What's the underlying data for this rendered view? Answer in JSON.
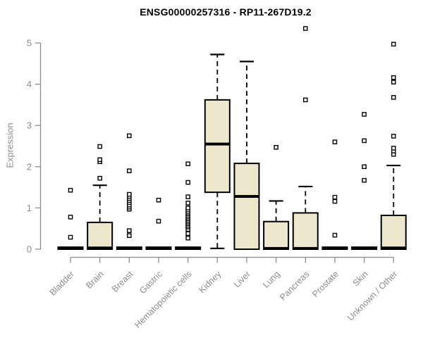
{
  "chart_data": {
    "type": "boxplot",
    "title": "ENSG00000257316 - RP11-267D19.2",
    "ylabel": "Expression",
    "xlabel": "",
    "ylim": [
      0,
      5.45
    ],
    "yticks": [
      0,
      1,
      2,
      3,
      4,
      5
    ],
    "grid": false,
    "legend": null,
    "colors": {
      "box_fill": "#EDE7CE",
      "box_stroke": "#000000",
      "median": "#000000",
      "axis": "#8C8C8C",
      "outlier_fill": "#FFFFFF",
      "title": "#000000"
    },
    "categories": [
      "Bladder",
      "Brain",
      "Breast",
      "Gastric",
      "Hematopoietic cells",
      "Kidney",
      "Liver",
      "Lung",
      "Pancreas",
      "Prostate",
      "Skin",
      "Unknown / Other"
    ],
    "boxes": [
      {
        "category": "Bladder",
        "whisker_low": 0,
        "q1": 0,
        "median": 0.02,
        "q3": 0.05,
        "whisker_high": 0.05,
        "outliers": [
          0.29,
          0.78,
          1.43
        ]
      },
      {
        "category": "Brain",
        "whisker_low": 0,
        "q1": 0,
        "median": 0.03,
        "q3": 0.65,
        "whisker_high": 1.55,
        "outliers": [
          1.72,
          2.12,
          2.17,
          2.49
        ]
      },
      {
        "category": "Breast",
        "whisker_low": 0,
        "q1": 0,
        "median": 0.02,
        "q3": 0.05,
        "whisker_high": 0.05,
        "outliers": [
          0.33,
          0.45,
          0.97,
          1.02,
          1.07,
          1.13,
          1.18,
          1.23,
          1.28,
          1.33,
          1.9,
          2.75
        ]
      },
      {
        "category": "Gastric",
        "whisker_low": 0,
        "q1": 0,
        "median": 0.02,
        "q3": 0.05,
        "whisker_high": 0.05,
        "outliers": [
          0.68,
          1.19
        ]
      },
      {
        "category": "Hematopoietic cells",
        "whisker_low": 0,
        "q1": 0,
        "median": 0.02,
        "q3": 0.05,
        "whisker_high": 0.05,
        "outliers": [
          0.27,
          0.38,
          0.48,
          0.54,
          0.58,
          0.62,
          0.66,
          0.7,
          0.74,
          0.78,
          0.82,
          0.86,
          0.9,
          0.95,
          1.0,
          1.12,
          1.27,
          1.62,
          2.07
        ]
      },
      {
        "category": "Kidney",
        "whisker_low": 0.02,
        "q1": 1.38,
        "median": 2.55,
        "q3": 3.62,
        "whisker_high": 4.72,
        "outliers": []
      },
      {
        "category": "Liver",
        "whisker_low": 0,
        "q1": 0,
        "median": 1.28,
        "q3": 2.08,
        "whisker_high": 4.55,
        "outliers": []
      },
      {
        "category": "Lung",
        "whisker_low": 0,
        "q1": 0,
        "median": 0.02,
        "q3": 0.67,
        "whisker_high": 1.17,
        "outliers": [
          2.47
        ]
      },
      {
        "category": "Pancreas",
        "whisker_low": 0,
        "q1": 0,
        "median": 0.02,
        "q3": 0.88,
        "whisker_high": 1.52,
        "outliers": [
          3.62,
          5.35
        ]
      },
      {
        "category": "Prostate",
        "whisker_low": 0,
        "q1": 0,
        "median": 0.02,
        "q3": 0.05,
        "whisker_high": 0.05,
        "outliers": [
          0.34,
          1.16,
          1.26,
          2.6
        ]
      },
      {
        "category": "Skin",
        "whisker_low": 0,
        "q1": 0,
        "median": 0.02,
        "q3": 0.05,
        "whisker_high": 0.05,
        "outliers": [
          1.67,
          2.0,
          2.63,
          3.27
        ]
      },
      {
        "category": "Unknown / Other",
        "whisker_low": 0,
        "q1": 0,
        "median": 0.03,
        "q3": 0.82,
        "whisker_high": 2.03,
        "outliers": [
          2.3,
          2.38,
          2.45,
          2.74,
          3.68,
          4.05,
          4.16,
          4.97
        ]
      }
    ]
  }
}
